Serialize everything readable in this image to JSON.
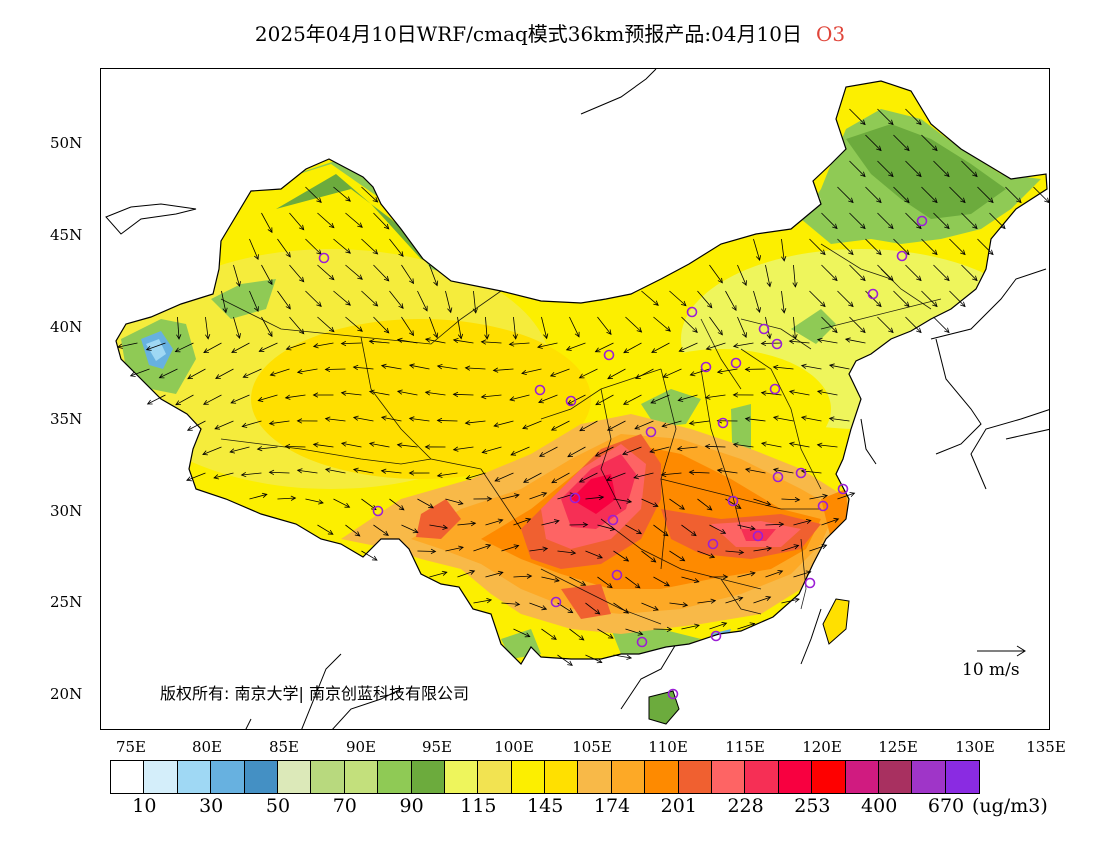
{
  "title": {
    "text": "2025年04月10日WRF/cmaq模式36km预报产品:04月10日",
    "species": "O3"
  },
  "map": {
    "lat_ticks": [
      "50N",
      "45N",
      "40N",
      "35N",
      "30N",
      "25N",
      "20N"
    ],
    "lon_ticks": [
      "75E",
      "80E",
      "85E",
      "90E",
      "95E",
      "100E",
      "105E",
      "110E",
      "115E",
      "120E",
      "125E",
      "130E",
      "135E"
    ],
    "copyright": "版权所有: 南京大学| 南京创蓝科技有限公司",
    "wind_reference": "10 m/s",
    "station_marker": "circle-marker-icon"
  },
  "legend": {
    "colors": [
      "#ffffff",
      "#d4eefa",
      "#9fd8f4",
      "#67b1e0",
      "#4490c4",
      "#dce9b9",
      "#b8d97e",
      "#c3e07c",
      "#8fca55",
      "#6cab3d",
      "#eef55c",
      "#f2e351",
      "#fcef00",
      "#ffe000",
      "#f8b948",
      "#fda926",
      "#fe8a00",
      "#f06030",
      "#fe6464",
      "#f62f55",
      "#f80040",
      "#fe0000",
      "#d01b80",
      "#a83060",
      "#9f35c8",
      "#8a2be2"
    ],
    "labels": [
      "10",
      "30",
      "50",
      "70",
      "90",
      "115",
      "145",
      "174",
      "201",
      "228",
      "253",
      "400",
      "670"
    ],
    "unit": "(ug/m3)"
  }
}
